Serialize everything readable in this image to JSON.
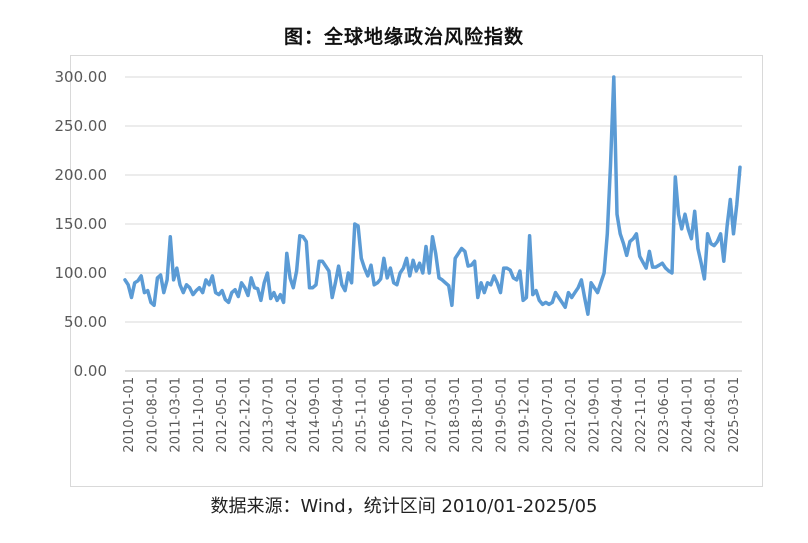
{
  "chart_data": {
    "type": "line",
    "title": "图：全球地缘政治风险指数",
    "source_note": "数据来源：Wind，统计区间 2010/01-2025/05",
    "xlabel": "",
    "ylabel": "",
    "ylim": [
      0,
      300
    ],
    "yticks": [
      "0.00",
      "50.00",
      "100.00",
      "150.00",
      "200.00",
      "250.00",
      "300.00"
    ],
    "xtick_labels": [
      "2010-01-01",
      "2010-08-01",
      "2011-03-01",
      "2011-10-01",
      "2012-05-01",
      "2012-12-01",
      "2013-07-01",
      "2014-02-01",
      "2014-09-01",
      "2015-04-01",
      "2015-11-01",
      "2016-06-01",
      "2017-01-01",
      "2017-08-01",
      "2018-03-01",
      "2018-10-01",
      "2019-05-01",
      "2019-12-01",
      "2020-07-01",
      "2021-02-01",
      "2021-09-01",
      "2022-04-01",
      "2022-11-01",
      "2023-06-01",
      "2024-01-01",
      "2024-08-01",
      "2025-03-01"
    ],
    "grid": true,
    "legend": "none",
    "line_color": "#5b9bd5",
    "series": [
      {
        "values": [
          93,
          88,
          75,
          90,
          92,
          97,
          80,
          82,
          70,
          67,
          95,
          98,
          80,
          93,
          137,
          93,
          105,
          88,
          80,
          88,
          85,
          78,
          82,
          85,
          80,
          93,
          88,
          97,
          80,
          78,
          82,
          73,
          70,
          80,
          83,
          76,
          90,
          85,
          77,
          95,
          85,
          84,
          72,
          90,
          100,
          74,
          80,
          72,
          78,
          70,
          120,
          95,
          85,
          102,
          138,
          137,
          132,
          85,
          85,
          88,
          112,
          112,
          107,
          102,
          75,
          90,
          107,
          88,
          82,
          100,
          90,
          150,
          148,
          115,
          105,
          97,
          108,
          88,
          90,
          94,
          115,
          95,
          105,
          90,
          88,
          100,
          105,
          115,
          97,
          113,
          102,
          110,
          100,
          127,
          100,
          137,
          120,
          95,
          93,
          90,
          87,
          67,
          115,
          120,
          125,
          122,
          107,
          108,
          112,
          75,
          90,
          80,
          90,
          88,
          97,
          90,
          80,
          105,
          105,
          103,
          95,
          93,
          102,
          72,
          75,
          138,
          78,
          82,
          72,
          68,
          70,
          68,
          70,
          80,
          75,
          70,
          65,
          80,
          75,
          80,
          85,
          93,
          75,
          58,
          90,
          85,
          80,
          90,
          100,
          140,
          210,
          300,
          160,
          140,
          130,
          118,
          132,
          135,
          140,
          117,
          111,
          105,
          122,
          106,
          106,
          108,
          110,
          105,
          102,
          100,
          198,
          160,
          145,
          160,
          145,
          135,
          163,
          125,
          110,
          94,
          140,
          130,
          128,
          132,
          140,
          112,
          148,
          175,
          140,
          170,
          208
        ]
      }
    ]
  }
}
